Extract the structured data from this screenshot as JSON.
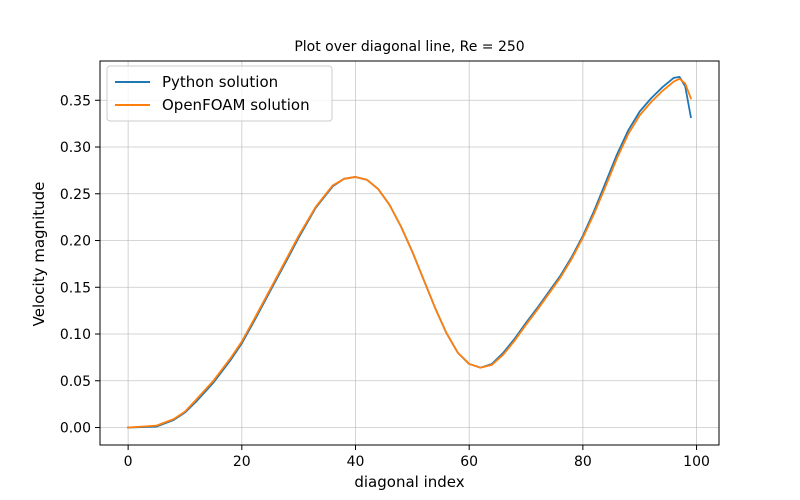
{
  "chart_data": {
    "type": "line",
    "title": "Plot over diagonal line, Re = 250",
    "xlabel": "diagonal index",
    "ylabel": "Velocity magnitude",
    "xlim": [
      -4.95,
      103.95
    ],
    "ylim": [
      -0.0187,
      0.392
    ],
    "xticks": [
      0,
      20,
      40,
      60,
      80,
      100
    ],
    "xtick_labels": [
      "0",
      "20",
      "40",
      "60",
      "80",
      "100"
    ],
    "yticks": [
      0.0,
      0.05,
      0.1,
      0.15,
      0.2,
      0.25,
      0.3,
      0.35
    ],
    "ytick_labels": [
      "0.00",
      "0.05",
      "0.10",
      "0.15",
      "0.20",
      "0.25",
      "0.30",
      "0.35"
    ],
    "grid": true,
    "legend_position": "top-left",
    "series": [
      {
        "name": "Python solution",
        "color": "#1f77b4",
        "points": [
          [
            0,
            0.0
          ],
          [
            5,
            0.001
          ],
          [
            8,
            0.008
          ],
          [
            10,
            0.016
          ],
          [
            12,
            0.028
          ],
          [
            15,
            0.048
          ],
          [
            18,
            0.072
          ],
          [
            20,
            0.09
          ],
          [
            22,
            0.112
          ],
          [
            25,
            0.146
          ],
          [
            28,
            0.18
          ],
          [
            30,
            0.203
          ],
          [
            33,
            0.235
          ],
          [
            36,
            0.258
          ],
          [
            38,
            0.266
          ],
          [
            40,
            0.268
          ],
          [
            42,
            0.265
          ],
          [
            44,
            0.255
          ],
          [
            46,
            0.238
          ],
          [
            48,
            0.215
          ],
          [
            50,
            0.188
          ],
          [
            52,
            0.158
          ],
          [
            54,
            0.128
          ],
          [
            56,
            0.101
          ],
          [
            58,
            0.08
          ],
          [
            60,
            0.068
          ],
          [
            62,
            0.064
          ],
          [
            64,
            0.068
          ],
          [
            66,
            0.08
          ],
          [
            68,
            0.095
          ],
          [
            70,
            0.112
          ],
          [
            72,
            0.128
          ],
          [
            74,
            0.145
          ],
          [
            76,
            0.162
          ],
          [
            78,
            0.182
          ],
          [
            80,
            0.205
          ],
          [
            82,
            0.232
          ],
          [
            84,
            0.262
          ],
          [
            86,
            0.292
          ],
          [
            88,
            0.318
          ],
          [
            90,
            0.338
          ],
          [
            92,
            0.352
          ],
          [
            94,
            0.364
          ],
          [
            96,
            0.374
          ],
          [
            97,
            0.375
          ],
          [
            98,
            0.365
          ],
          [
            99,
            0.332
          ]
        ]
      },
      {
        "name": "OpenFOAM solution",
        "color": "#ff7f0e",
        "points": [
          [
            0,
            0.0
          ],
          [
            5,
            0.002
          ],
          [
            8,
            0.009
          ],
          [
            10,
            0.017
          ],
          [
            12,
            0.03
          ],
          [
            15,
            0.05
          ],
          [
            18,
            0.074
          ],
          [
            20,
            0.092
          ],
          [
            22,
            0.114
          ],
          [
            25,
            0.148
          ],
          [
            28,
            0.182
          ],
          [
            30,
            0.205
          ],
          [
            33,
            0.236
          ],
          [
            36,
            0.259
          ],
          [
            38,
            0.266
          ],
          [
            40,
            0.268
          ],
          [
            42,
            0.265
          ],
          [
            44,
            0.255
          ],
          [
            46,
            0.238
          ],
          [
            48,
            0.215
          ],
          [
            50,
            0.188
          ],
          [
            52,
            0.158
          ],
          [
            54,
            0.128
          ],
          [
            56,
            0.101
          ],
          [
            58,
            0.08
          ],
          [
            60,
            0.068
          ],
          [
            62,
            0.064
          ],
          [
            64,
            0.067
          ],
          [
            66,
            0.078
          ],
          [
            68,
            0.093
          ],
          [
            70,
            0.11
          ],
          [
            72,
            0.126
          ],
          [
            74,
            0.143
          ],
          [
            76,
            0.16
          ],
          [
            78,
            0.18
          ],
          [
            80,
            0.203
          ],
          [
            82,
            0.229
          ],
          [
            84,
            0.258
          ],
          [
            86,
            0.288
          ],
          [
            88,
            0.314
          ],
          [
            90,
            0.334
          ],
          [
            92,
            0.348
          ],
          [
            94,
            0.36
          ],
          [
            96,
            0.37
          ],
          [
            97,
            0.373
          ],
          [
            98,
            0.368
          ],
          [
            99,
            0.352
          ]
        ]
      }
    ]
  }
}
